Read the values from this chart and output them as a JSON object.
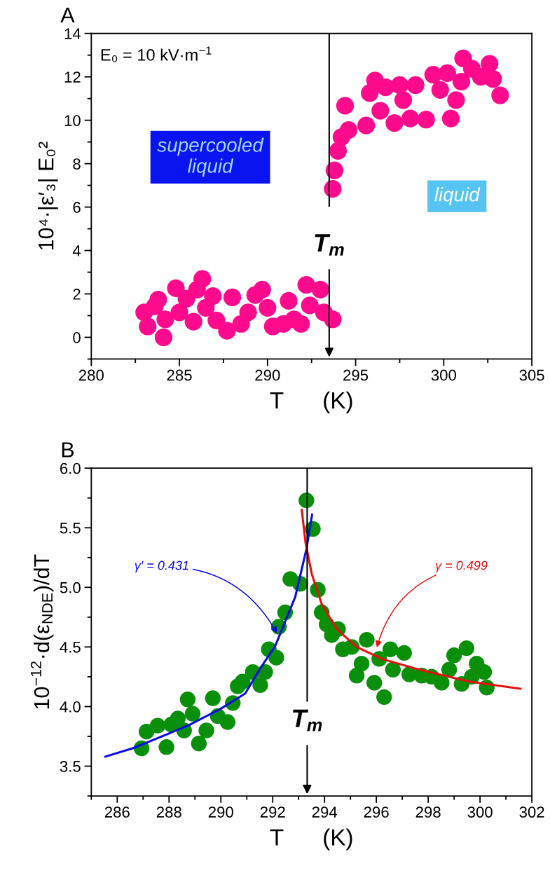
{
  "chart_data": [
    {
      "type": "scatter",
      "title": "A",
      "xlabel": "T      (K)",
      "ylabel": "10⁴·|ε′₃| E₀²",
      "xlim": [
        280,
        305
      ],
      "ylim": [
        -1,
        14
      ],
      "xticks": [
        280,
        285,
        290,
        295,
        300,
        305
      ],
      "yticks": [
        0,
        2,
        4,
        6,
        8,
        10,
        12,
        14
      ],
      "marker": "circle",
      "legend": false,
      "grid": false,
      "annotations": [
        "E₀ = 10 kV·m$^{−1}$",
        "supercooled\nliquid",
        "liquid"
      ],
      "ref_lines": [
        {
          "axis": "x",
          "value": 293.5,
          "label": "T$_{m}$",
          "color": "#000000"
        }
      ],
      "series": [
        {
          "color": "#ff0a8c",
          "x": [
            283.0,
            283.2,
            283.6,
            283.8,
            284.1,
            284.2,
            284.8,
            285.0,
            285.4,
            285.8,
            286.0,
            286.3,
            286.5,
            286.9,
            287.1,
            287.7,
            288.0,
            288.5,
            288.9,
            289.3,
            289.7,
            290.0,
            290.3,
            290.9,
            291.2,
            291.5,
            291.9,
            292.2,
            292.4,
            293.0,
            293.2,
            293.7,
            293.7,
            293.8,
            294.0,
            294.2,
            294.6,
            294.4,
            295.6,
            295.8,
            296.1,
            296.4,
            296.7,
            297.2,
            297.5,
            297.7,
            298.1,
            298.4,
            299.0,
            299.4,
            299.8,
            300.2,
            300.4,
            300.7,
            301.0,
            301.1,
            301.6,
            302.1,
            302.6,
            302.8,
            303.2
          ],
          "values": [
            1.15,
            0.5,
            1.43,
            1.74,
            0.0,
            0.83,
            2.26,
            1.15,
            1.78,
            0.72,
            2.2,
            2.69,
            1.36,
            1.9,
            0.78,
            0.3,
            1.84,
            0.62,
            1.15,
            1.95,
            2.2,
            1.36,
            0.5,
            0.62,
            1.68,
            0.83,
            0.62,
            2.42,
            1.47,
            2.2,
            1.15,
            0.83,
            6.84,
            7.69,
            8.59,
            9.23,
            9.55,
            10.67,
            9.76,
            11.25,
            11.83,
            10.44,
            11.52,
            9.87,
            11.62,
            10.93,
            10.08,
            11.62,
            10.03,
            12.1,
            11.4,
            12.17,
            10.08,
            10.93,
            11.78,
            12.85,
            12.37,
            12.0,
            12.6,
            11.9,
            11.15
          ]
        }
      ]
    },
    {
      "type": "scatter",
      "title": "B",
      "xlabel": "T      (K)",
      "ylabel": "10$^{−12}$·d(ε$_{NDE}$)/dT",
      "xlim": [
        285,
        302
      ],
      "ylim": [
        3.25,
        6.0
      ],
      "xticks": [
        286,
        288,
        290,
        292,
        294,
        296,
        298,
        300,
        302
      ],
      "yticks": [
        3.5,
        {
          "value": 4,
          "label": "4.0"
        },
        4.5,
        {
          "value": 5,
          "label": "5.0"
        },
        5.5,
        {
          "value": 6,
          "label": "6.0"
        }
      ],
      "legend": false,
      "grid": false,
      "annotations": [
        {
          "text": "γ′ = 0.431",
          "x": 292.2,
          "y": 4.6
        },
        {
          "text": "γ = 0.499",
          "x": 296.0,
          "y": 4.48
        }
      ],
      "ref_lines": [
        {
          "axis": "x",
          "value": 293.33,
          "label": "T$_{m}$",
          "color": "#000000"
        }
      ],
      "series": [
        {
          "type": "scatter",
          "marker": "circle",
          "color": "#0a8f0a",
          "x": [
            286.94,
            287.13,
            287.56,
            287.9,
            288.09,
            288.34,
            288.58,
            288.72,
            288.91,
            289.15,
            289.44,
            289.69,
            289.88,
            290.26,
            290.46,
            290.65,
            290.84,
            291.23,
            291.52,
            291.71,
            291.85,
            292.14,
            292.24,
            292.48,
            292.68,
            293.06,
            293.3,
            293.55,
            293.74,
            293.89,
            294.08,
            294.28,
            294.52,
            294.71,
            295.05,
            295.24,
            295.43,
            295.63,
            295.92,
            296.11,
            296.3,
            296.54,
            296.64,
            297.07,
            297.27,
            297.75,
            298.13,
            298.52,
            298.81,
            299.0,
            299.29,
            299.48,
            299.68,
            299.87,
            300.16,
            300.26
          ],
          "values": [
            3.65,
            3.79,
            3.84,
            3.66,
            3.85,
            3.9,
            3.8,
            4.06,
            3.94,
            3.69,
            3.8,
            4.07,
            3.92,
            3.87,
            4.03,
            4.17,
            4.21,
            4.29,
            4.18,
            4.29,
            4.48,
            4.41,
            4.67,
            4.79,
            5.07,
            5.03,
            5.73,
            5.49,
            4.98,
            4.79,
            4.69,
            4.6,
            4.65,
            4.48,
            4.5,
            4.26,
            4.36,
            4.56,
            4.2,
            4.4,
            4.08,
            4.48,
            4.31,
            4.45,
            4.27,
            4.26,
            4.25,
            4.2,
            4.31,
            4.43,
            4.19,
            4.49,
            4.25,
            4.36,
            4.29,
            4.16
          ]
        },
        {
          "type": "line",
          "color": "#0a0ae6",
          "x": [
            285.54,
            286.6,
            287.95,
            288.82,
            289.98,
            290.94,
            291.52,
            292.1,
            292.29,
            292.87,
            293.3,
            293.52
          ],
          "values": [
            3.58,
            3.65,
            3.77,
            3.85,
            3.98,
            4.11,
            4.32,
            4.51,
            4.61,
            4.92,
            5.32,
            5.61
          ]
        },
        {
          "type": "line",
          "color": "#e61010",
          "x": [
            293.12,
            293.27,
            293.51,
            293.89,
            294.47,
            295.24,
            296.21,
            297.65,
            299.58,
            301.56
          ],
          "values": [
            5.65,
            5.37,
            5.11,
            4.86,
            4.65,
            4.5,
            4.4,
            4.31,
            4.21,
            4.15
          ]
        }
      ]
    }
  ]
}
